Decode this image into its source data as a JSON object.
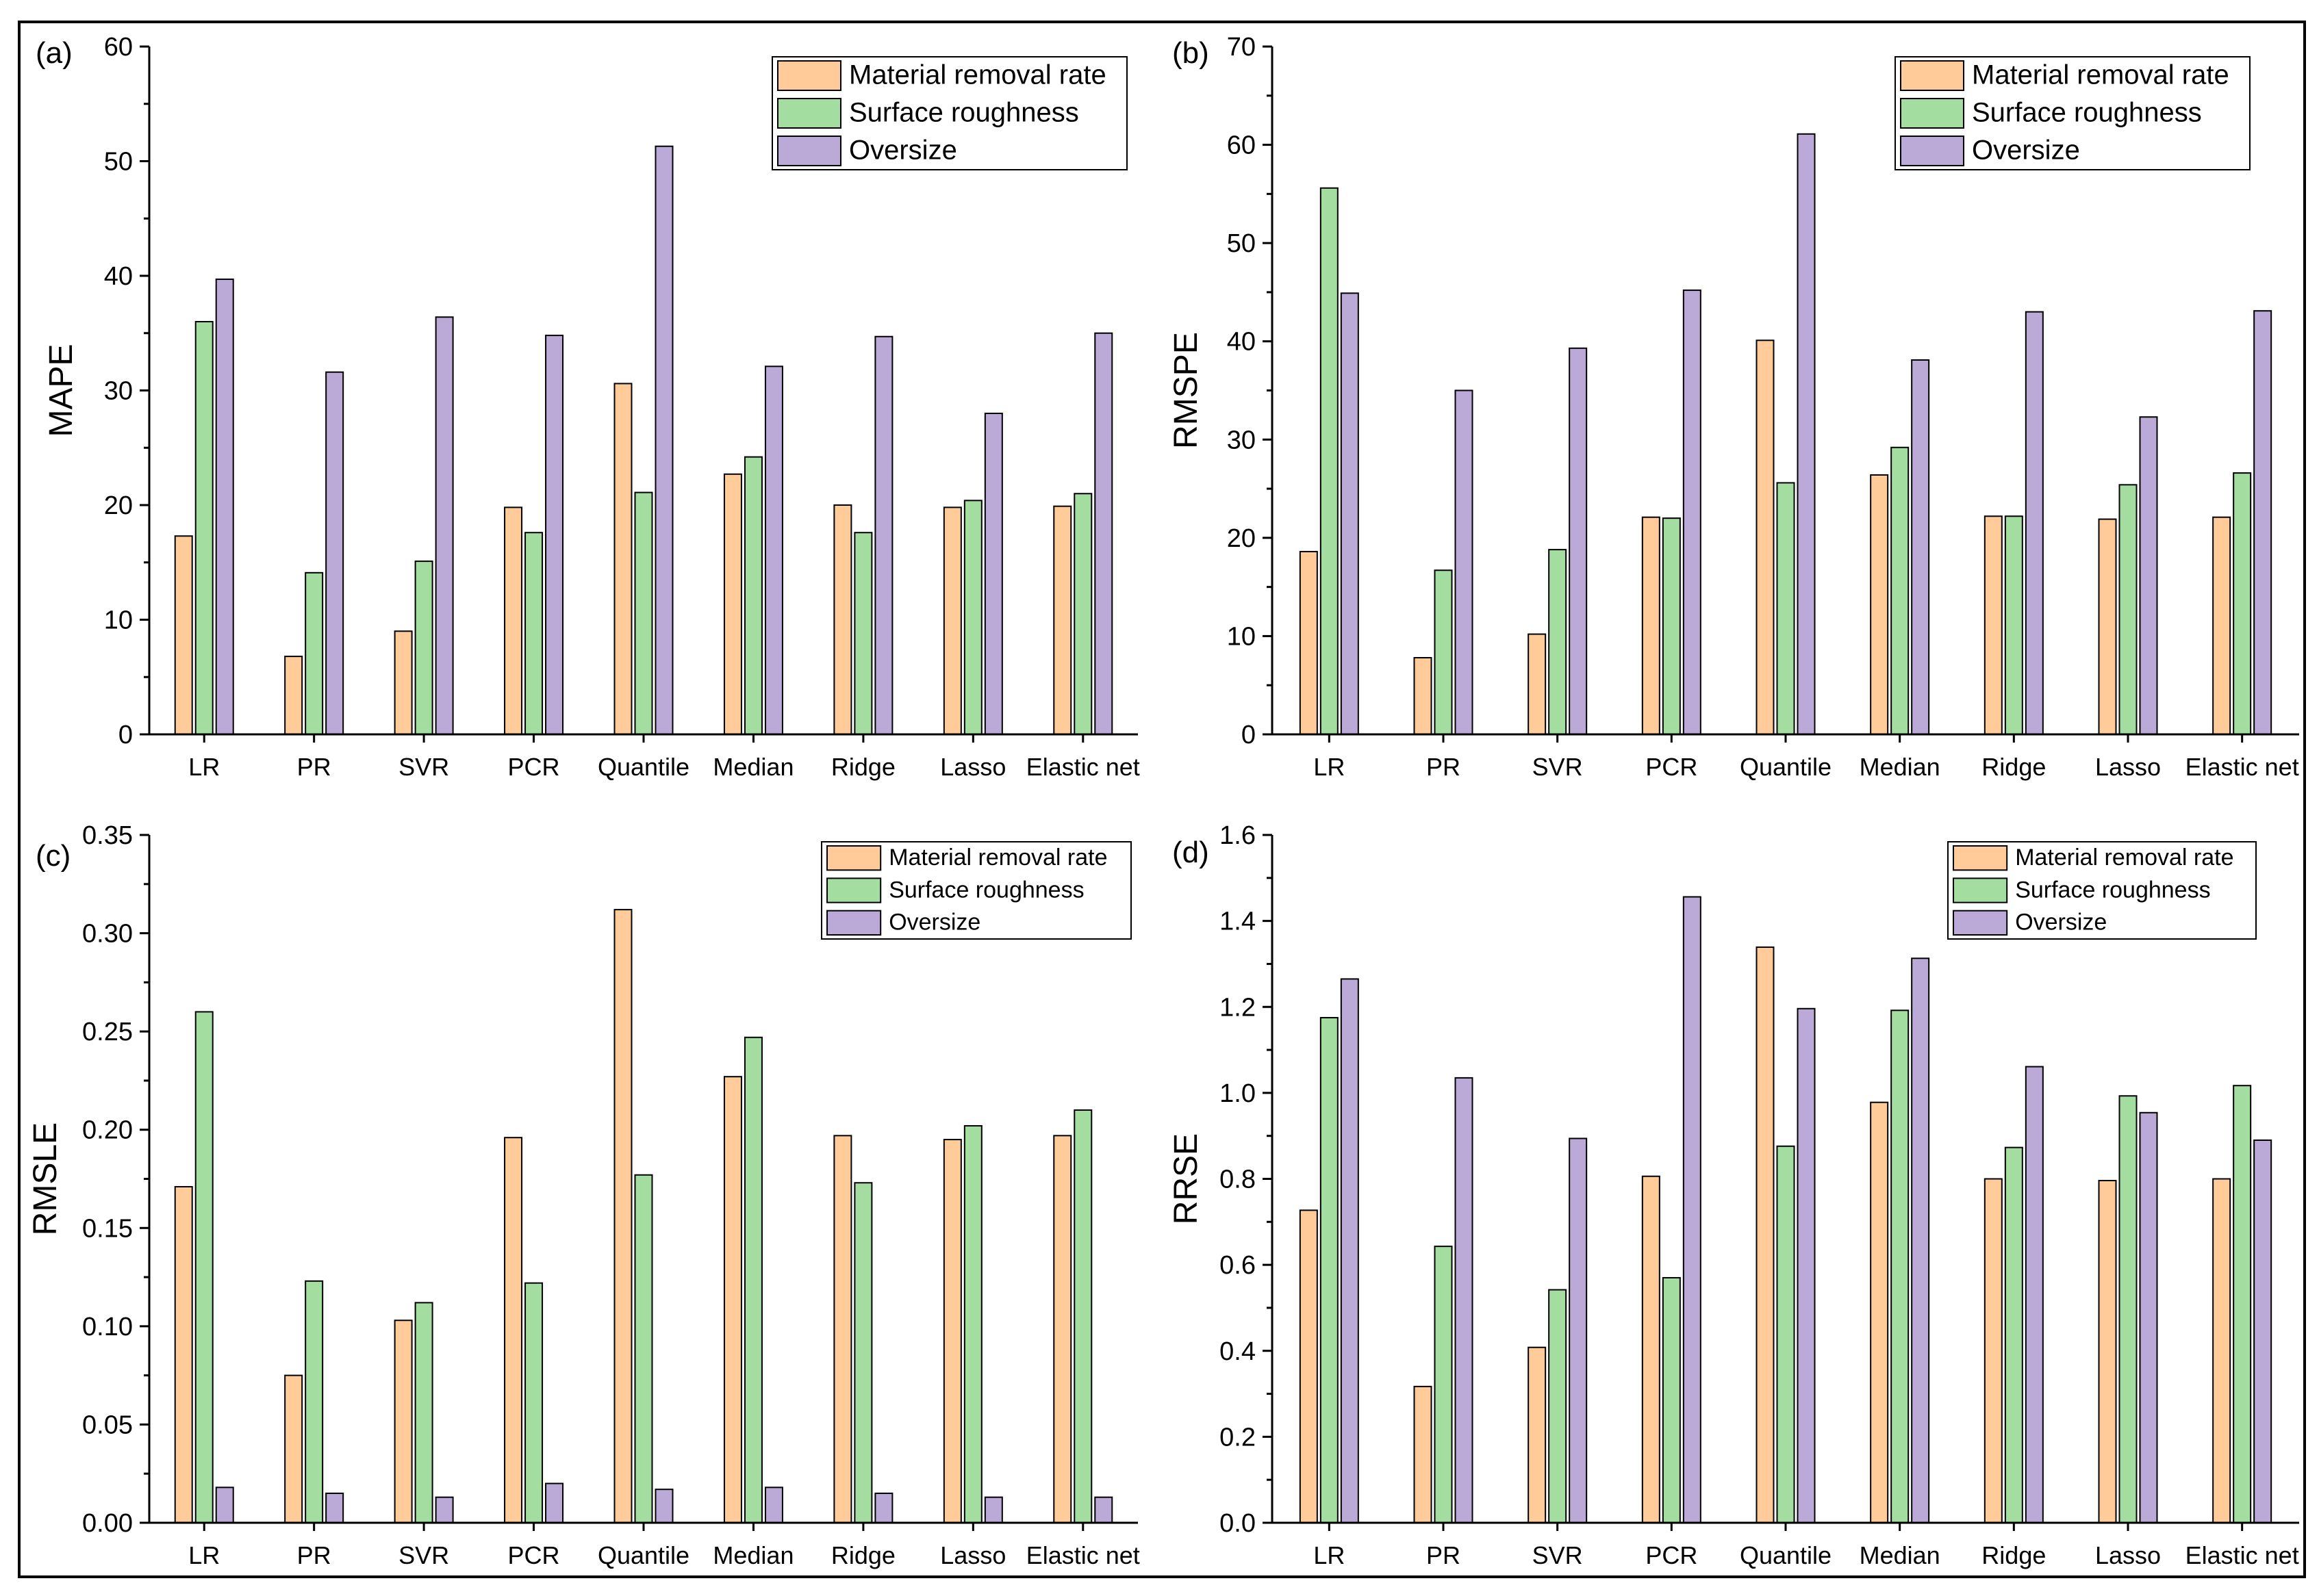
{
  "chart_data": [
    {
      "panel_label": "(a)",
      "type": "bar",
      "title": "",
      "xlabel": "",
      "ylabel": "MAPE",
      "ylim": [
        0,
        60
      ],
      "yticks": [
        "0",
        "10",
        "20",
        "30",
        "40",
        "50",
        "60"
      ],
      "legend_position": "top-right",
      "categories": [
        "LR",
        "PR",
        "SVR",
        "PCR",
        "Quantile",
        "Median",
        "Ridge",
        "Lasso",
        "Elastic net"
      ],
      "series": [
        {
          "name": "Material removal rate",
          "values": [
            17.3,
            6.8,
            9.0,
            19.8,
            30.6,
            22.7,
            20.0,
            19.8,
            19.9
          ]
        },
        {
          "name": "Surface roughness",
          "values": [
            36.0,
            14.1,
            15.1,
            17.6,
            21.1,
            24.2,
            17.6,
            20.4,
            21.0
          ]
        },
        {
          "name": "Oversize",
          "values": [
            39.7,
            31.6,
            36.4,
            34.8,
            51.3,
            32.1,
            34.7,
            28.0,
            35.0
          ]
        }
      ]
    },
    {
      "panel_label": "(b)",
      "type": "bar",
      "title": "",
      "xlabel": "",
      "ylabel": "RMSPE",
      "ylim": [
        0,
        70
      ],
      "yticks": [
        "0",
        "10",
        "20",
        "30",
        "40",
        "50",
        "60",
        "70"
      ],
      "legend_position": "top-right",
      "categories": [
        "LR",
        "PR",
        "SVR",
        "PCR",
        "Quantile",
        "Median",
        "Ridge",
        "Lasso",
        "Elastic net"
      ],
      "series": [
        {
          "name": "Material removal rate",
          "values": [
            18.6,
            7.8,
            10.2,
            22.1,
            40.1,
            26.4,
            22.2,
            21.9,
            22.1
          ]
        },
        {
          "name": "Surface roughness",
          "values": [
            55.6,
            16.7,
            18.8,
            22.0,
            25.6,
            29.2,
            22.2,
            25.4,
            26.6
          ]
        },
        {
          "name": "Oversize",
          "values": [
            44.9,
            35.0,
            39.3,
            45.2,
            61.1,
            38.1,
            43.0,
            32.3,
            43.1
          ]
        }
      ]
    },
    {
      "panel_label": "(c)",
      "type": "bar",
      "title": "",
      "xlabel": "",
      "ylabel": "RMSLE",
      "ylim": [
        0,
        0.35
      ],
      "yticks": [
        "0.00",
        "0.05",
        "0.10",
        "0.15",
        "0.20",
        "0.25",
        "0.30",
        "0.35"
      ],
      "legend_position": "top-right",
      "categories": [
        "LR",
        "PR",
        "SVR",
        "PCR",
        "Quantile",
        "Median",
        "Ridge",
        "Lasso",
        "Elastic net"
      ],
      "series": [
        {
          "name": "Material removal rate",
          "values": [
            0.171,
            0.075,
            0.103,
            0.196,
            0.312,
            0.227,
            0.197,
            0.195,
            0.197
          ]
        },
        {
          "name": "Surface roughness",
          "values": [
            0.26,
            0.123,
            0.112,
            0.122,
            0.177,
            0.247,
            0.173,
            0.202,
            0.21
          ]
        },
        {
          "name": "Oversize",
          "values": [
            0.018,
            0.015,
            0.013,
            0.02,
            0.017,
            0.018,
            0.015,
            0.013,
            0.013
          ]
        }
      ]
    },
    {
      "panel_label": "(d)",
      "type": "bar",
      "title": "",
      "xlabel": "",
      "ylabel": "RRSE",
      "ylim": [
        0,
        1.6
      ],
      "yticks": [
        "0.0",
        "0.2",
        "0.4",
        "0.6",
        "0.8",
        "1.0",
        "1.2",
        "1.4",
        "1.6"
      ],
      "legend_position": "top-right",
      "categories": [
        "LR",
        "PR",
        "SVR",
        "PCR",
        "Quantile",
        "Median",
        "Ridge",
        "Lasso",
        "Elastic net"
      ],
      "series": [
        {
          "name": "Material removal rate",
          "values": [
            0.727,
            0.317,
            0.408,
            0.806,
            1.339,
            0.978,
            0.8,
            0.796,
            0.8
          ]
        },
        {
          "name": "Surface roughness",
          "values": [
            1.175,
            0.643,
            0.542,
            0.57,
            0.876,
            1.192,
            0.873,
            0.993,
            1.017
          ]
        },
        {
          "name": "Oversize",
          "values": [
            1.265,
            1.035,
            0.894,
            1.456,
            1.196,
            1.313,
            1.061,
            0.954,
            0.89
          ]
        }
      ]
    }
  ],
  "colors": {
    "series": [
      "#FFCC99",
      "#A3DDA0",
      "#BBA9D8"
    ],
    "axis": "#000000",
    "background": "#ffffff"
  }
}
